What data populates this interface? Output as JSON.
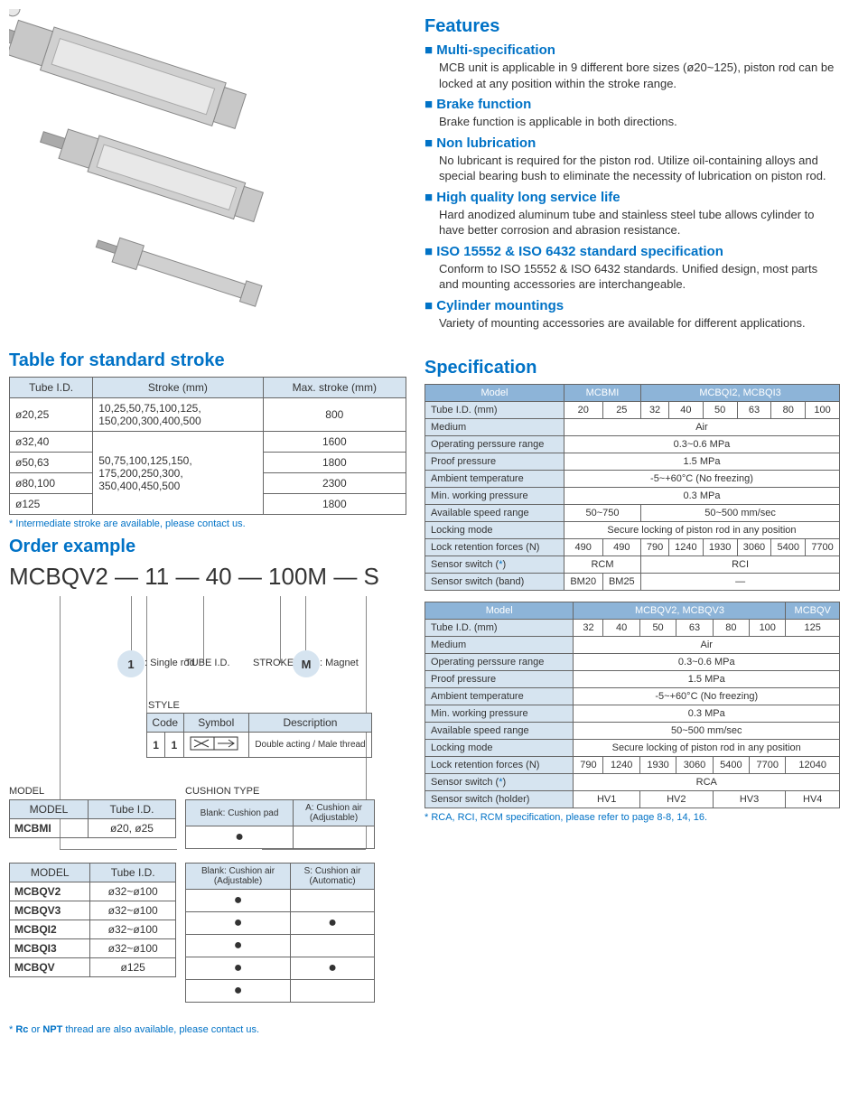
{
  "strokeTable": {
    "title": "Table for standard stroke",
    "columns": [
      "Tube I.D.",
      "Stroke (mm)",
      "Max. stroke (mm)"
    ],
    "rows": [
      {
        "tube": "ø20,25",
        "stroke": "10,25,50,75,100,125,\n150,200,300,400,500",
        "max": "800"
      },
      {
        "tube": "ø32,40",
        "stroke": "",
        "max": "1600"
      },
      {
        "tube": "ø50,63",
        "stroke": "50,75,100,125,150,\n175,200,250,300,\n350,400,450,500",
        "max": "1800"
      },
      {
        "tube": "ø80,100",
        "stroke": "",
        "max": "2300"
      },
      {
        "tube": "ø125",
        "stroke": "",
        "max": "1800"
      }
    ],
    "footnote": "* Intermediate stroke are available, please contact us."
  },
  "orderExample": {
    "title": "Order example",
    "code": "MCBQV2 — 11 — 40 — 100M — S",
    "callouts": {
      "singleRod": {
        "num": "1",
        "label": ": Single rod"
      },
      "tubeID": "TUBE I.D.",
      "stroke": "STROKE",
      "magnet": {
        "num": "M",
        "label": ": Magnet"
      }
    },
    "styleTable": {
      "title": "STYLE",
      "headers": [
        "Code",
        "Symbol",
        "Description"
      ],
      "row": {
        "code1": "1",
        "code2": "1",
        "desc": "Double acting / Male thread"
      }
    },
    "modelTable1": {
      "title": "MODEL",
      "headers": [
        "MODEL",
        "Tube I.D."
      ],
      "rows": [
        {
          "m": "MCBMI",
          "t": "ø20, ø25"
        }
      ]
    },
    "modelTable2": {
      "headers": [
        "MODEL",
        "Tube I.D."
      ],
      "rows": [
        {
          "m": "MCBQV2",
          "t": "ø32~ø100"
        },
        {
          "m": "MCBQV3",
          "t": "ø32~ø100"
        },
        {
          "m": "MCBQI2",
          "t": "ø32~ø100"
        },
        {
          "m": "MCBQI3",
          "t": "ø32~ø100"
        },
        {
          "m": "MCBQV",
          "t": "ø125"
        }
      ]
    },
    "cushionTable1": {
      "title": "CUSHION TYPE",
      "headers": [
        "Blank: Cushion pad",
        "A: Cushion air\n(Adjustable)"
      ],
      "rows": [
        {
          "a": "●",
          "b": ""
        }
      ]
    },
    "cushionTable2": {
      "headers": [
        "Blank: Cushion air\n(Adjustable)",
        "S: Cushion air\n(Automatic)"
      ],
      "rows": [
        {
          "a": "●",
          "b": ""
        },
        {
          "a": "●",
          "b": "●"
        },
        {
          "a": "●",
          "b": ""
        },
        {
          "a": "●",
          "b": "●"
        },
        {
          "a": "●",
          "b": ""
        }
      ]
    },
    "footnote": "* Rc or NPT thread are also available, please contact us.",
    "footnoteBold1": "Rc",
    "footnoteBold2": "NPT"
  },
  "features": {
    "title": "Features",
    "items": [
      {
        "t": "Multi-specification",
        "b": "MCB unit is applicable in 9 different bore sizes (ø20~125), piston rod can be locked at any position within the stroke range."
      },
      {
        "t": "Brake function",
        "b": "Brake function is applicable in both directions."
      },
      {
        "t": "Non lubrication",
        "b": "No lubricant is required for the piston rod. Utilize oil-containing alloys and special bearing bush to eliminate the necessity of lubrication on piston rod."
      },
      {
        "t": "High quality long service life",
        "b": "Hard anodized aluminum tube and stainless steel tube allows cylinder to have better corrosion and abrasion resistance."
      },
      {
        "t": "ISO 15552 & ISO 6432 standard specification",
        "b": "Conform to ISO 15552 & ISO 6432 standards. Unified design, most parts and mounting accessories are interchangeable."
      },
      {
        "t": "Cylinder mountings",
        "b": "Variety of mounting accessories are available for different applications."
      }
    ]
  },
  "spec": {
    "title": "Specification",
    "table1": {
      "modelHeaders": [
        "Model",
        "MCBMI",
        "MCBQI2, MCBQI3"
      ],
      "modelSpans": [
        1,
        2,
        6
      ],
      "rows": [
        {
          "lbl": "Tube I.D. (mm)",
          "vals": [
            "20",
            "25",
            "32",
            "40",
            "50",
            "63",
            "80",
            "100"
          ]
        },
        {
          "lbl": "Medium",
          "vals": [
            "Air"
          ],
          "span": 8
        },
        {
          "lbl": "Operating perssure range",
          "vals": [
            "0.3~0.6 MPa"
          ],
          "span": 8
        },
        {
          "lbl": "Proof pressure",
          "vals": [
            "1.5 MPa"
          ],
          "span": 8
        },
        {
          "lbl": "Ambient temperature",
          "vals": [
            "-5~+60°C (No freezing)"
          ],
          "span": 8
        },
        {
          "lbl": "Min. working pressure",
          "vals": [
            "0.3 MPa"
          ],
          "span": 8
        },
        {
          "lbl": "Available speed range",
          "vals": [
            "50~750",
            "50~500 mm/sec"
          ],
          "spans": [
            2,
            6
          ]
        },
        {
          "lbl": "Locking mode",
          "vals": [
            "Secure locking of piston rod in any position"
          ],
          "span": 8
        },
        {
          "lbl": "Lock retention forces (N)",
          "vals": [
            "490",
            "490",
            "790",
            "1240",
            "1930",
            "3060",
            "5400",
            "7700"
          ]
        },
        {
          "lbl": "Sensor switch (*)",
          "vals": [
            "RCM",
            "RCI"
          ],
          "spans": [
            2,
            6
          ],
          "star": true
        },
        {
          "lbl": "Sensor switch (band)",
          "vals": [
            "BM20",
            "BM25",
            "—"
          ],
          "spans": [
            1,
            1,
            6
          ]
        }
      ]
    },
    "table2": {
      "modelHeaders": [
        "Model",
        "MCBQV2, MCBQV3",
        "MCBQV"
      ],
      "modelSpans": [
        1,
        6,
        1
      ],
      "rows": [
        {
          "lbl": "Tube I.D. (mm)",
          "vals": [
            "32",
            "40",
            "50",
            "63",
            "80",
            "100",
            "125"
          ]
        },
        {
          "lbl": "Medium",
          "vals": [
            "Air"
          ],
          "span": 7
        },
        {
          "lbl": "Operating perssure range",
          "vals": [
            "0.3~0.6 MPa"
          ],
          "span": 7
        },
        {
          "lbl": "Proof pressure",
          "vals": [
            "1.5 MPa"
          ],
          "span": 7
        },
        {
          "lbl": "Ambient temperature",
          "vals": [
            "-5~+60°C (No freezing)"
          ],
          "span": 7
        },
        {
          "lbl": "Min. working pressure",
          "vals": [
            "0.3 MPa"
          ],
          "span": 7
        },
        {
          "lbl": "Available speed range",
          "vals": [
            "50~500 mm/sec"
          ],
          "span": 7
        },
        {
          "lbl": "Locking mode",
          "vals": [
            "Secure locking of piston rod in any position"
          ],
          "span": 7
        },
        {
          "lbl": "Lock retention forces (N)",
          "vals": [
            "790",
            "1240",
            "1930",
            "3060",
            "5400",
            "7700",
            "12040"
          ]
        },
        {
          "lbl": "Sensor switch (*)",
          "vals": [
            "RCA"
          ],
          "span": 7,
          "star": true
        },
        {
          "lbl": "Sensor switch (holder)",
          "vals": [
            "HV1",
            "HV2",
            "HV3",
            "HV4"
          ],
          "spans": [
            2,
            2,
            2,
            1
          ]
        }
      ]
    },
    "footnote": "* RCA, RCI, RCM specification, please refer to page 8-8, 14, 16."
  }
}
